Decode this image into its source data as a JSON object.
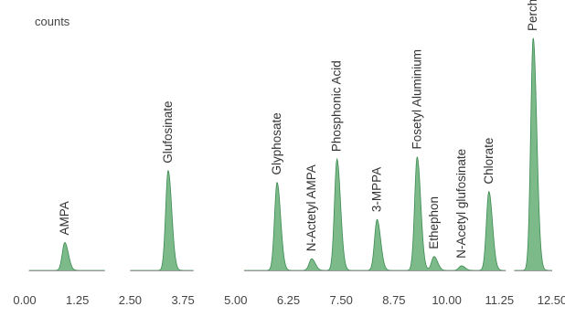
{
  "chart_data": {
    "type": "line",
    "ylabel": "counts",
    "xlim": [
      0,
      12.5
    ],
    "ylim": [
      0,
      1
    ],
    "x_ticks": [
      "0.00",
      "1.25",
      "2.50",
      "3.75",
      "5.00",
      "6.25",
      "7.50",
      "8.75",
      "10.00",
      "11.25",
      "12.50"
    ],
    "grid": false,
    "fill_color": "#7cba8a",
    "line_color": "#3c8a52",
    "baseline_color": "#999999",
    "peaks": [
      {
        "name": "AMPA",
        "rt": 0.95,
        "height": 0.12
      },
      {
        "name": "Glufosinate",
        "rt": 3.4,
        "height": 0.43
      },
      {
        "name": "Glyphosate",
        "rt": 5.98,
        "height": 0.38
      },
      {
        "name": "N-Actetyl AMPA",
        "rt": 6.8,
        "height": 0.05
      },
      {
        "name": "Phosphonic Acid",
        "rt": 7.4,
        "height": 0.48
      },
      {
        "name": "3-MPPA",
        "rt": 8.35,
        "height": 0.22
      },
      {
        "name": "Fosetyl Aluminium",
        "rt": 9.3,
        "height": 0.49
      },
      {
        "name": "Ethephon",
        "rt": 9.7,
        "height": 0.06
      },
      {
        "name": "N-Acetyl glufosinate",
        "rt": 10.35,
        "height": 0.02
      },
      {
        "name": "Chlorate",
        "rt": 11.0,
        "height": 0.34
      },
      {
        "name": "Perchlorate",
        "rt": 12.05,
        "height": 1.0
      }
    ],
    "segments": [
      [
        0.1,
        1.9
      ],
      [
        2.5,
        4.0
      ],
      [
        5.2,
        11.4
      ],
      [
        11.6,
        12.5
      ]
    ]
  }
}
